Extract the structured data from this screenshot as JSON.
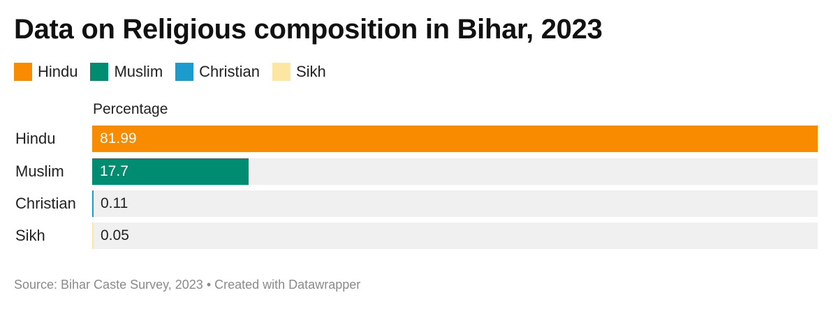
{
  "title": "Data on Religious composition in Bihar, 2023",
  "footer": {
    "source": "Source: Bihar Caste Survey, 2023",
    "separator": " • ",
    "credit": "Created with Datawrapper"
  },
  "colors": {
    "Hindu": "#f98b00",
    "Muslim": "#008c70",
    "Christian": "#1b9ccc",
    "Sikh": "#fde5a2",
    "track": "#f0f0f0"
  },
  "legend": [
    "Hindu",
    "Muslim",
    "Christian",
    "Sikh"
  ],
  "chart_data": {
    "type": "bar",
    "orientation": "horizontal",
    "title": "Data on Religious composition in Bihar, 2023",
    "column_header": "Percentage",
    "categories": [
      "Hindu",
      "Muslim",
      "Christian",
      "Sikh"
    ],
    "values": [
      81.99,
      17.7,
      0.11,
      0.05
    ],
    "value_labels": [
      "81.99",
      "17.7",
      "0.11",
      "0.05"
    ],
    "xlim": [
      0,
      81.99
    ],
    "legend_position": "top-left",
    "grid": false
  }
}
